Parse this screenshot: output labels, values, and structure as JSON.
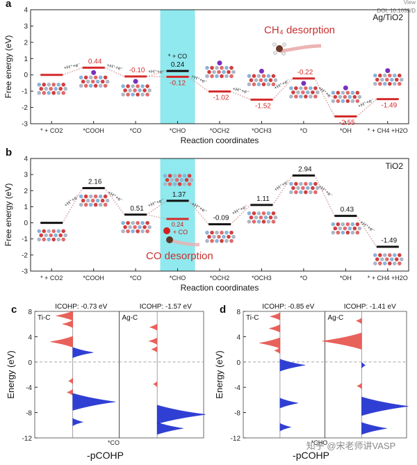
{
  "header": {
    "view": "View",
    "doi": "DOI: 10.1039/D"
  },
  "watermark": "知乎 @宋老师讲VASP",
  "colors": {
    "red": "#d42a2a",
    "black": "#111111",
    "cyan": "#8fe9ee",
    "blue": "#1f2fd0",
    "redFill": "#e8544e"
  },
  "chart_data": [
    {
      "id": "a",
      "type": "line",
      "panel_label": "a",
      "title": "Ag/TiO2",
      "xlabel": "Reaction coordinates",
      "ylabel": "Free energy (eV)",
      "ylim": [
        -3,
        4
      ],
      "yticks": [
        -3,
        -2,
        -1,
        0,
        1,
        2,
        3,
        4
      ],
      "categories": [
        "* + CO2",
        "*COOH",
        "*CO",
        "*CHO",
        "*OCH2",
        "*OCH3",
        "*O",
        "*OH",
        "* + CH4 +H2O"
      ],
      "highlight_index": 3,
      "series": [
        {
          "name": "main",
          "color": "#d42a2a",
          "values": [
            0,
            0.44,
            -0.1,
            -0.12,
            -1.02,
            -1.52,
            -0.22,
            -2.55,
            -1.49
          ]
        },
        {
          "name": "* + CO",
          "color": "#111111",
          "values": [
            null,
            null,
            null,
            0.24,
            null,
            null,
            null,
            null,
            null
          ]
        }
      ],
      "labels": [
        "",
        "0.44",
        "-0.10",
        "-0.12",
        "-1.02",
        "-1.52",
        "-0.22",
        "-2.55",
        "-1.49"
      ],
      "co_label": "* + CO",
      "co_value": "0.24",
      "step_label": "+H⁺+e⁻",
      "annotation": "CH₄ desorption"
    },
    {
      "id": "b",
      "type": "line",
      "panel_label": "b",
      "title": "TiO2",
      "xlabel": "Reaction coordinates",
      "ylabel": "Free energy (eV)",
      "ylim": [
        -3,
        4
      ],
      "yticks": [
        -3,
        -2,
        -1,
        0,
        1,
        2,
        3,
        4
      ],
      "categories": [
        "* + CO2",
        "*COOH",
        "*CO",
        "*CHO",
        "*OCH2",
        "*OCH3",
        "*O",
        "*OH",
        "* + CH4 +H2O"
      ],
      "highlight_index": 3,
      "series": [
        {
          "name": "main",
          "color": "#111111",
          "values": [
            0,
            2.16,
            0.51,
            1.37,
            -0.09,
            1.11,
            2.94,
            0.43,
            -1.49
          ]
        },
        {
          "name": "+ CO",
          "color": "#d42a2a",
          "values": [
            null,
            null,
            null,
            0.24,
            null,
            null,
            null,
            null,
            null
          ]
        }
      ],
      "labels": [
        "",
        "2.16",
        "0.51",
        "1.37",
        "-0.09",
        "1.11",
        "2.94",
        "0.43",
        "-1.49"
      ],
      "co_label": "+ CO",
      "co_value": "0.24",
      "step_label": "+H⁺+e⁻",
      "annotation": "CO desorption"
    },
    {
      "id": "c",
      "type": "area",
      "panel_label": "c",
      "subtitle": "*CO",
      "xlabel": "-pCOHP",
      "ylabel": "Energy (eV)",
      "ylim": [
        -12,
        8
      ],
      "yticks": [
        -12,
        -8,
        -4,
        0,
        4,
        8
      ],
      "series": [
        {
          "name": "Ti-C",
          "icohp": "ICOHP: -0.73 eV",
          "peaks": [
            {
              "e": 7.3,
              "v": 0.9
            },
            {
              "e": 6.0,
              "v": 0.55
            },
            {
              "e": 3.2,
              "v": 1.2
            },
            {
              "e": 1.5,
              "v": -1.1
            },
            {
              "e": -3.0,
              "v": 0.22
            },
            {
              "e": -4.8,
              "v": 0.3
            },
            {
              "e": -6.3,
              "v": -2.3
            },
            {
              "e": -9.5,
              "v": -0.55
            }
          ]
        },
        {
          "name": "Ag-C",
          "icohp": "ICOHP: -1.57 eV",
          "peaks": [
            {
              "e": 5.5,
              "v": 0.4
            },
            {
              "e": 3.3,
              "v": 0.45
            },
            {
              "e": 2.0,
              "v": 0.3
            },
            {
              "e": -3.5,
              "v": 0.2
            },
            {
              "e": -8.3,
              "v": -2.6
            },
            {
              "e": -10.5,
              "v": -1.4
            }
          ]
        }
      ]
    },
    {
      "id": "d",
      "type": "area",
      "panel_label": "d",
      "subtitle": "*CHO",
      "xlabel": "-pCOHP",
      "ylabel": "Energy (eV)",
      "ylim": [
        -12,
        8
      ],
      "yticks": [
        -12,
        -8,
        -4,
        0,
        4,
        8
      ],
      "series": [
        {
          "name": "Ti-C",
          "icohp": "ICOHP: -0.85 eV",
          "peaks": [
            {
              "e": 7.2,
              "v": 0.55
            },
            {
              "e": 5.3,
              "v": 0.6
            },
            {
              "e": 3.0,
              "v": 1.15
            },
            {
              "e": 1.8,
              "v": 0.3
            },
            {
              "e": -0.5,
              "v": -1.4
            },
            {
              "e": -6.5,
              "v": -1.0
            },
            {
              "e": -10.3,
              "v": -0.6
            }
          ]
        },
        {
          "name": "Ag-C",
          "icohp": "ICOHP: -1.41 eV",
          "peaks": [
            {
              "e": 6.5,
              "v": 0.3
            },
            {
              "e": 3.3,
              "v": 2.2
            },
            {
              "e": -0.5,
              "v": -0.2
            },
            {
              "e": -3.8,
              "v": 0.25
            },
            {
              "e": -7.0,
              "v": -2.6
            },
            {
              "e": -10.5,
              "v": -1.4
            }
          ]
        }
      ]
    }
  ]
}
